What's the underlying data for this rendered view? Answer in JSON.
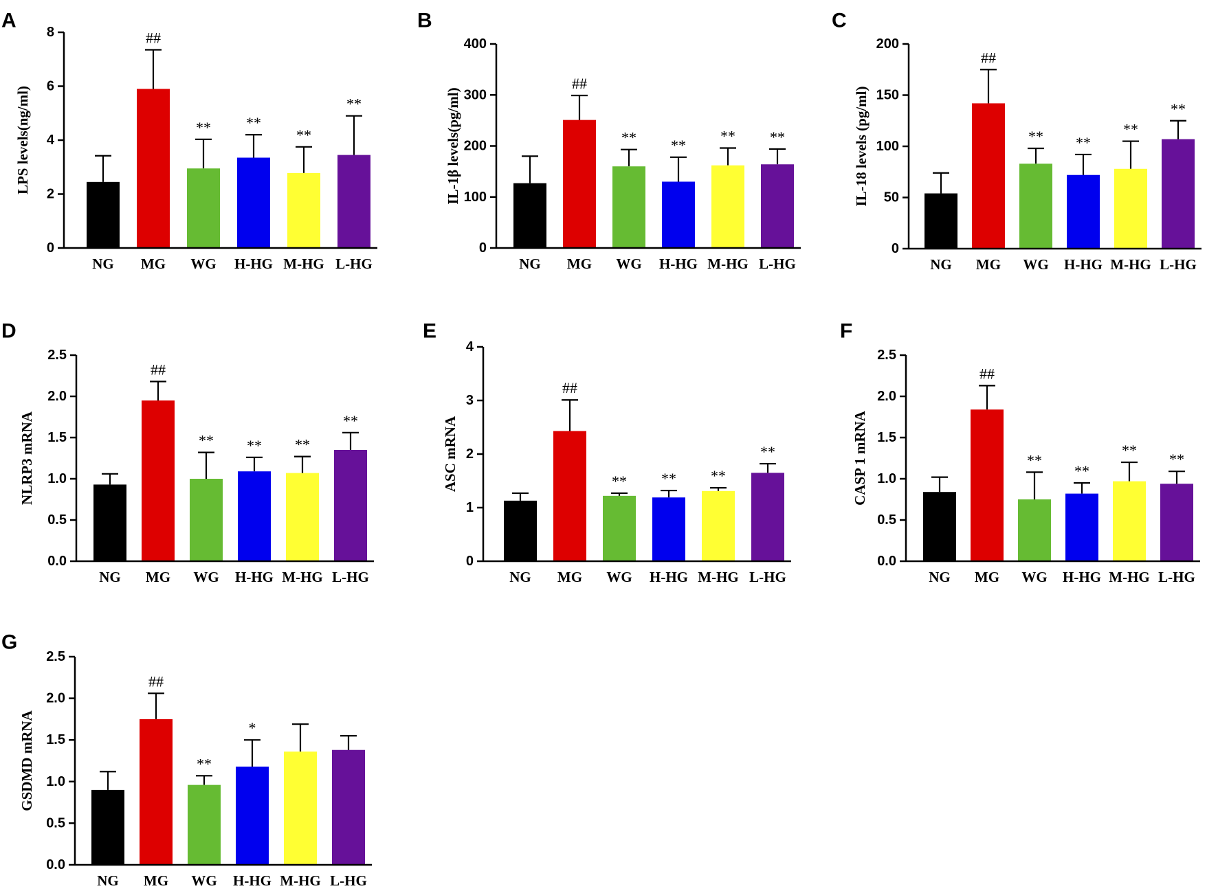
{
  "chart_data": [
    {
      "panel": "A",
      "type": "bar",
      "ylabel": "LPS levels(ng/ml)",
      "ylim": [
        0,
        8
      ],
      "yticks": [
        0,
        2,
        4,
        6,
        8
      ],
      "tick_labels": [
        "0",
        "2",
        "4",
        "6",
        "8"
      ],
      "categories": [
        "NG",
        "MG",
        "WG",
        "H-HG",
        "M-HG",
        "L-HG"
      ],
      "values": [
        2.45,
        5.9,
        2.95,
        3.35,
        2.78,
        3.45
      ],
      "errors": [
        0.97,
        1.45,
        1.08,
        0.85,
        0.97,
        1.45
      ],
      "sig": [
        "",
        "##",
        "**",
        "**",
        "**",
        "**"
      ]
    },
    {
      "panel": "B",
      "type": "bar",
      "ylabel": "IL-1β levels(pg/ml)",
      "ylim": [
        0,
        400
      ],
      "yticks": [
        0,
        100,
        200,
        300,
        400
      ],
      "tick_labels": [
        "0",
        "100",
        "200",
        "300",
        "400"
      ],
      "categories": [
        "NG",
        "MG",
        "WG",
        "H-HG",
        "M-HG",
        "L-HG"
      ],
      "values": [
        127,
        251,
        160,
        130,
        162,
        164
      ],
      "errors": [
        53,
        48,
        33,
        48,
        34,
        30
      ],
      "sig": [
        "",
        "##",
        "**",
        "**",
        "**",
        "**"
      ]
    },
    {
      "panel": "C",
      "type": "bar",
      "ylabel": "IL-18 levels (pg/ml)",
      "ylim": [
        0,
        200
      ],
      "yticks": [
        0,
        50,
        100,
        150,
        200
      ],
      "tick_labels": [
        "0",
        "50",
        "100",
        "150",
        "200"
      ],
      "categories": [
        "NG",
        "MG",
        "WG",
        "H-HG",
        "M-HG",
        "L-HG"
      ],
      "values": [
        54,
        142,
        83,
        72,
        78,
        107
      ],
      "errors": [
        20,
        33,
        15,
        20,
        27,
        18
      ],
      "sig": [
        "",
        "##",
        "**",
        "**",
        "**",
        "**"
      ]
    },
    {
      "panel": "D",
      "type": "bar",
      "ylabel": "NLRP3 mRNA",
      "ylim": [
        0,
        2.5
      ],
      "yticks": [
        0,
        0.5,
        1.0,
        1.5,
        2.0,
        2.5
      ],
      "tick_labels": [
        "0.0",
        "0.5",
        "1.0",
        "1.5",
        "2.0",
        "2.5"
      ],
      "categories": [
        "NG",
        "MG",
        "WG",
        "H-HG",
        "M-HG",
        "L-HG"
      ],
      "values": [
        0.93,
        1.95,
        1.0,
        1.09,
        1.07,
        1.35
      ],
      "errors": [
        0.13,
        0.23,
        0.32,
        0.17,
        0.2,
        0.21
      ],
      "sig": [
        "",
        "##",
        "**",
        "**",
        "**",
        "**"
      ]
    },
    {
      "panel": "E",
      "type": "bar",
      "ylabel": "ASC mRNA",
      "ylim": [
        0,
        4
      ],
      "yticks": [
        0,
        1,
        2,
        3,
        4
      ],
      "tick_labels": [
        "0",
        "1",
        "2",
        "3",
        "4"
      ],
      "categories": [
        "NG",
        "MG",
        "WG",
        "H-HG",
        "M-HG",
        "L-HG"
      ],
      "values": [
        1.13,
        2.43,
        1.22,
        1.19,
        1.31,
        1.65
      ],
      "errors": [
        0.14,
        0.58,
        0.05,
        0.13,
        0.06,
        0.17
      ],
      "sig": [
        "",
        "##",
        "**",
        "**",
        "**",
        "**"
      ]
    },
    {
      "panel": "F",
      "type": "bar",
      "ylabel": "CASP 1 mRNA",
      "ylim": [
        0,
        2.5
      ],
      "yticks": [
        0,
        0.5,
        1.0,
        1.5,
        2.0,
        2.5
      ],
      "tick_labels": [
        "0.0",
        "0.5",
        "1.0",
        "1.5",
        "2.0",
        "2.5"
      ],
      "categories": [
        "NG",
        "MG",
        "WG",
        "H-HG",
        "M-HG",
        "L-HG"
      ],
      "values": [
        0.84,
        1.84,
        0.75,
        0.82,
        0.97,
        0.94
      ],
      "errors": [
        0.18,
        0.29,
        0.33,
        0.13,
        0.23,
        0.15
      ],
      "sig": [
        "",
        "##",
        "**",
        "**",
        "**",
        "**"
      ]
    },
    {
      "panel": "G",
      "type": "bar",
      "ylabel": "GSDMD mRNA",
      "ylim": [
        0,
        2.5
      ],
      "yticks": [
        0,
        0.5,
        1.0,
        1.5,
        2.0,
        2.5
      ],
      "tick_labels": [
        "0.0",
        "0.5",
        "1.0",
        "1.5",
        "2.0",
        "2.5"
      ],
      "categories": [
        "NG",
        "MG",
        "WG",
        "H-HG",
        "M-HG",
        "L-HG"
      ],
      "values": [
        0.9,
        1.75,
        0.96,
        1.18,
        1.36,
        1.38
      ],
      "errors": [
        0.22,
        0.31,
        0.11,
        0.32,
        0.33,
        0.17
      ],
      "sig": [
        "",
        "##",
        "**",
        "*",
        "",
        ""
      ]
    }
  ],
  "colors": {
    "NG": "#000000",
    "MG": "#dd0000",
    "WG": "#66bb33",
    "H-HG": "#0000ee",
    "M-HG": "#ffff33",
    "L-HG": "#661199"
  }
}
